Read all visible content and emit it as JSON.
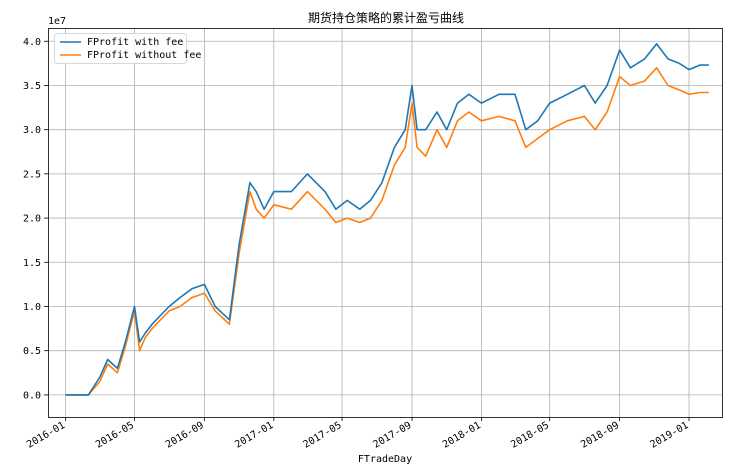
{
  "chart_data": {
    "type": "line",
    "title": "期货持仓策略的累计盈亏曲线",
    "xlabel": "FTradeDay",
    "ylabel": "",
    "y_offset_label": "1e7",
    "y_unit_scale": 10000000,
    "xlim": [
      "2015-12-01",
      "2019-02-28"
    ],
    "ylim": [
      -0.25,
      4.15
    ],
    "x_ticks": [
      "2016-01",
      "2016-05",
      "2016-09",
      "2017-01",
      "2017-05",
      "2017-09",
      "2018-01",
      "2018-05",
      "2018-09",
      "2019-01"
    ],
    "y_ticks": [
      "0.0",
      "0.5",
      "1.0",
      "1.5",
      "2.0",
      "2.5",
      "3.0",
      "3.5",
      "4.0"
    ],
    "grid": true,
    "legend_position": "top-left",
    "colors": {
      "with_fee": "#1f77b4",
      "without_fee": "#ff7f0e",
      "grid": "#b0b0b0"
    },
    "series": [
      {
        "name": "FProfit with fee",
        "x": [
          "2016-01-01",
          "2016-02-10",
          "2016-03-01",
          "2016-03-15",
          "2016-04-01",
          "2016-04-15",
          "2016-05-01",
          "2016-05-10",
          "2016-05-20",
          "2016-06-01",
          "2016-07-01",
          "2016-07-20",
          "2016-08-10",
          "2016-09-01",
          "2016-09-20",
          "2016-10-15",
          "2016-11-01",
          "2016-11-20",
          "2016-12-01",
          "2016-12-15",
          "2017-01-01",
          "2017-02-01",
          "2017-03-01",
          "2017-04-01",
          "2017-04-20",
          "2017-05-10",
          "2017-06-01",
          "2017-06-20",
          "2017-07-10",
          "2017-08-01",
          "2017-08-20",
          "2017-09-01",
          "2017-09-10",
          "2017-09-25",
          "2017-10-15",
          "2017-11-01",
          "2017-11-20",
          "2017-12-10",
          "2018-01-01",
          "2018-02-01",
          "2018-03-01",
          "2018-03-20",
          "2018-04-10",
          "2018-05-01",
          "2018-06-01",
          "2018-07-01",
          "2018-07-20",
          "2018-08-10",
          "2018-09-01",
          "2018-09-20",
          "2018-10-15",
          "2018-11-05",
          "2018-11-25",
          "2018-12-15",
          "2019-01-01",
          "2019-01-20",
          "2019-02-05"
        ],
        "values": [
          0.0,
          0.0,
          0.2,
          0.4,
          0.3,
          0.6,
          1.0,
          0.6,
          0.7,
          0.8,
          1.0,
          1.1,
          1.2,
          1.25,
          1.0,
          0.85,
          1.7,
          2.4,
          2.3,
          2.1,
          2.3,
          2.3,
          2.5,
          2.3,
          2.1,
          2.2,
          2.1,
          2.2,
          2.4,
          2.8,
          3.0,
          3.5,
          3.0,
          3.0,
          3.2,
          3.0,
          3.3,
          3.4,
          3.3,
          3.4,
          3.4,
          3.0,
          3.1,
          3.3,
          3.4,
          3.5,
          3.3,
          3.5,
          3.9,
          3.7,
          3.8,
          3.97,
          3.8,
          3.75,
          3.68,
          3.73,
          3.73
        ]
      },
      {
        "name": "FProfit without fee",
        "x": [
          "2016-01-01",
          "2016-02-10",
          "2016-03-01",
          "2016-03-15",
          "2016-04-01",
          "2016-04-15",
          "2016-05-01",
          "2016-05-10",
          "2016-05-20",
          "2016-06-01",
          "2016-07-01",
          "2016-07-20",
          "2016-08-10",
          "2016-09-01",
          "2016-09-20",
          "2016-10-15",
          "2016-11-01",
          "2016-11-20",
          "2016-12-01",
          "2016-12-15",
          "2017-01-01",
          "2017-02-01",
          "2017-03-01",
          "2017-04-01",
          "2017-04-20",
          "2017-05-10",
          "2017-06-01",
          "2017-06-20",
          "2017-07-10",
          "2017-08-01",
          "2017-08-20",
          "2017-09-01",
          "2017-09-10",
          "2017-09-25",
          "2017-10-15",
          "2017-11-01",
          "2017-11-20",
          "2017-12-10",
          "2018-01-01",
          "2018-02-01",
          "2018-03-01",
          "2018-03-20",
          "2018-04-10",
          "2018-05-01",
          "2018-06-01",
          "2018-07-01",
          "2018-07-20",
          "2018-08-10",
          "2018-09-01",
          "2018-09-20",
          "2018-10-15",
          "2018-11-05",
          "2018-11-25",
          "2018-12-15",
          "2019-01-01",
          "2019-01-20",
          "2019-02-05"
        ],
        "values": [
          0.0,
          0.0,
          0.15,
          0.35,
          0.25,
          0.55,
          0.95,
          0.5,
          0.65,
          0.75,
          0.95,
          1.0,
          1.1,
          1.15,
          0.95,
          0.8,
          1.6,
          2.3,
          2.1,
          2.0,
          2.15,
          2.1,
          2.3,
          2.1,
          1.95,
          2.0,
          1.95,
          2.0,
          2.2,
          2.6,
          2.8,
          3.3,
          2.8,
          2.7,
          3.0,
          2.8,
          3.1,
          3.2,
          3.1,
          3.15,
          3.1,
          2.8,
          2.9,
          3.0,
          3.1,
          3.15,
          3.0,
          3.2,
          3.6,
          3.5,
          3.55,
          3.7,
          3.5,
          3.45,
          3.4,
          3.42,
          3.42
        ]
      }
    ]
  }
}
